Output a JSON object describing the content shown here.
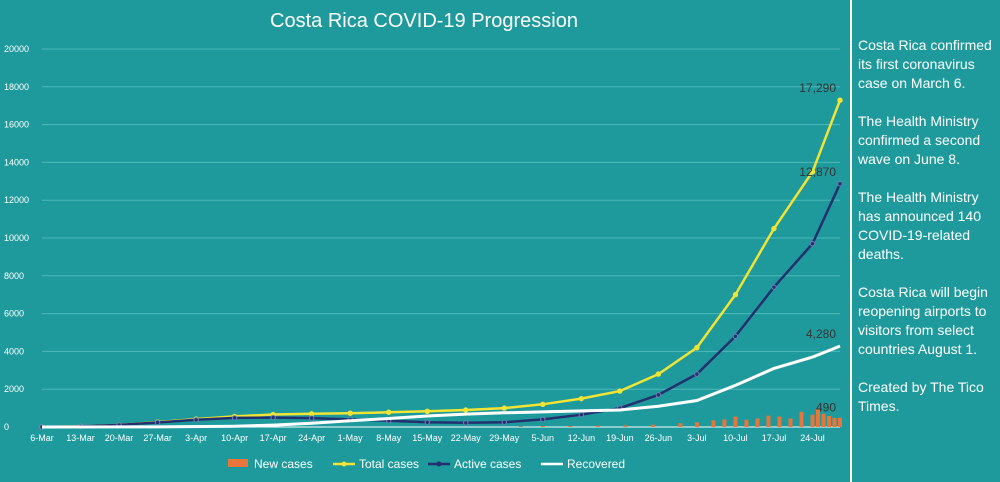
{
  "chart_data": {
    "type": "line",
    "title": "Costa Rica COVID-19 Progression",
    "ylim": [
      0,
      20000
    ],
    "yticks": [
      0,
      2000,
      4000,
      6000,
      8000,
      10000,
      12000,
      14000,
      16000,
      18000,
      20000
    ],
    "start_date": "2020-03-06",
    "end_date": "2020-07-29",
    "xtick_labels": [
      "6-Mar",
      "13-Mar",
      "20-Mar",
      "27-Mar",
      "3-Apr",
      "10-Apr",
      "17-Apr",
      "24-Apr",
      "1-May",
      "8-May",
      "15-May",
      "22-May",
      "29-May",
      "5-Jun",
      "12-Jun",
      "19-Jun",
      "26-Jun",
      "3-Jul",
      "10-Jul",
      "17-Jul",
      "24-Jul"
    ],
    "series": [
      {
        "name": "Total cases",
        "color": "#f2e435",
        "points": [
          [
            "2020-03-06",
            1
          ],
          [
            "2020-03-13",
            30
          ],
          [
            "2020-03-20",
            110
          ],
          [
            "2020-03-27",
            260
          ],
          [
            "2020-04-03",
            420
          ],
          [
            "2020-04-10",
            560
          ],
          [
            "2020-04-17",
            660
          ],
          [
            "2020-04-24",
            700
          ],
          [
            "2020-05-01",
            730
          ],
          [
            "2020-05-08",
            780
          ],
          [
            "2020-05-15",
            830
          ],
          [
            "2020-05-22",
            900
          ],
          [
            "2020-05-29",
            1000
          ],
          [
            "2020-06-05",
            1200
          ],
          [
            "2020-06-12",
            1500
          ],
          [
            "2020-06-19",
            1900
          ],
          [
            "2020-06-26",
            2800
          ],
          [
            "2020-07-03",
            4200
          ],
          [
            "2020-07-10",
            7000
          ],
          [
            "2020-07-17",
            10500
          ],
          [
            "2020-07-24",
            13500
          ],
          [
            "2020-07-29",
            17290
          ]
        ],
        "end_label": "17,290"
      },
      {
        "name": "Active cases",
        "color": "#23306e",
        "points": [
          [
            "2020-03-06",
            1
          ],
          [
            "2020-03-13",
            30
          ],
          [
            "2020-03-20",
            110
          ],
          [
            "2020-03-27",
            240
          ],
          [
            "2020-04-03",
            380
          ],
          [
            "2020-04-10",
            480
          ],
          [
            "2020-04-17",
            500
          ],
          [
            "2020-04-24",
            470
          ],
          [
            "2020-05-01",
            400
          ],
          [
            "2020-05-08",
            330
          ],
          [
            "2020-05-15",
            250
          ],
          [
            "2020-05-22",
            220
          ],
          [
            "2020-05-29",
            250
          ],
          [
            "2020-06-05",
            400
          ],
          [
            "2020-06-12",
            650
          ],
          [
            "2020-06-19",
            1000
          ],
          [
            "2020-06-26",
            1700
          ],
          [
            "2020-07-03",
            2800
          ],
          [
            "2020-07-10",
            4800
          ],
          [
            "2020-07-17",
            7400
          ],
          [
            "2020-07-24",
            9700
          ],
          [
            "2020-07-29",
            12870
          ]
        ],
        "end_label": "12,870"
      },
      {
        "name": "Recovered",
        "color": "#ffffff",
        "points": [
          [
            "2020-03-06",
            0
          ],
          [
            "2020-03-27",
            5
          ],
          [
            "2020-04-10",
            40
          ],
          [
            "2020-04-17",
            100
          ],
          [
            "2020-04-24",
            200
          ],
          [
            "2020-05-01",
            330
          ],
          [
            "2020-05-08",
            450
          ],
          [
            "2020-05-15",
            580
          ],
          [
            "2020-05-22",
            680
          ],
          [
            "2020-05-29",
            750
          ],
          [
            "2020-06-05",
            800
          ],
          [
            "2020-06-12",
            850
          ],
          [
            "2020-06-19",
            900
          ],
          [
            "2020-06-26",
            1100
          ],
          [
            "2020-07-03",
            1400
          ],
          [
            "2020-07-10",
            2200
          ],
          [
            "2020-07-17",
            3100
          ],
          [
            "2020-07-24",
            3700
          ],
          [
            "2020-07-29",
            4280
          ]
        ],
        "end_label": "4,280"
      },
      {
        "name": "New cases",
        "color": "#e8763a",
        "type": "bar",
        "points": [
          [
            "2020-06-01",
            30
          ],
          [
            "2020-06-05",
            50
          ],
          [
            "2020-06-10",
            60
          ],
          [
            "2020-06-15",
            70
          ],
          [
            "2020-06-20",
            90
          ],
          [
            "2020-06-25",
            120
          ],
          [
            "2020-06-30",
            200
          ],
          [
            "2020-07-03",
            250
          ],
          [
            "2020-07-06",
            350
          ],
          [
            "2020-07-08",
            400
          ],
          [
            "2020-07-10",
            550
          ],
          [
            "2020-07-12",
            380
          ],
          [
            "2020-07-14",
            450
          ],
          [
            "2020-07-16",
            600
          ],
          [
            "2020-07-18",
            550
          ],
          [
            "2020-07-20",
            450
          ],
          [
            "2020-07-22",
            800
          ],
          [
            "2020-07-24",
            650
          ],
          [
            "2020-07-25",
            950
          ],
          [
            "2020-07-26",
            700
          ],
          [
            "2020-07-27",
            580
          ],
          [
            "2020-07-28",
            480
          ],
          [
            "2020-07-29",
            490
          ]
        ],
        "end_label": "490"
      }
    ],
    "legend_position": "bottom",
    "grid": true
  },
  "legend": [
    {
      "name": "New cases",
      "style": "bar"
    },
    {
      "name": "Total cases",
      "style": "line-yellow"
    },
    {
      "name": "Active cases",
      "style": "line-navy"
    },
    {
      "name": "Recovered",
      "style": "line-white"
    }
  ],
  "sidebar": {
    "paragraphs": [
      "Costa Rica confirmed its first coronavirus case on March 6.",
      "The Health Ministry confirmed a second wave on June 8.",
      "The Health Ministry has announced 140 COVID-19-related deaths.",
      "Costa Rica will begin reopening airports to visitors from select countries August 1.",
      "Created by The Tico Times."
    ]
  }
}
